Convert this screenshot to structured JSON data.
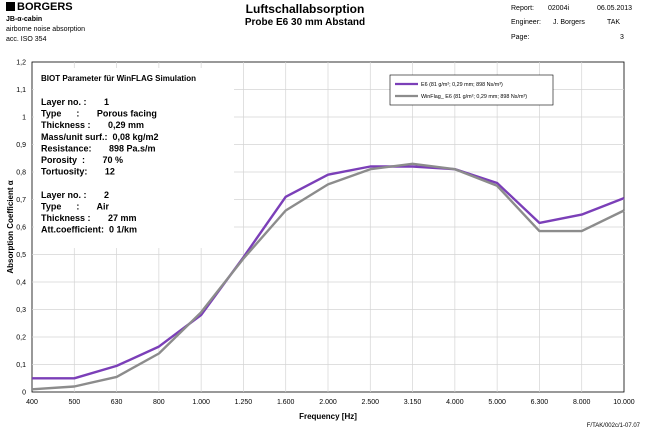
{
  "header": {
    "brand": "BORGERS",
    "subtitle_lines": [
      "JB-α-cabin",
      "airborne noise absorption",
      "acc. ISO 354"
    ],
    "title": "Luftschallabsorption",
    "subtitle": "Probe E6 30 mm Abstand",
    "report_label": "Report:",
    "report_value": "02004i",
    "date": "06.05.2013",
    "engineer_label": "Engineer:",
    "engineer_value": "J. Borgers",
    "engineer_code": "TAK",
    "page_label": "Page:",
    "page_value": "3"
  },
  "footer": {
    "code": "F/TAK/002c/1-07.07"
  },
  "colors": {
    "series1": "#7B3FB8",
    "series2": "#8C8C8C",
    "grid": "#d4d4d4"
  },
  "chart_data": {
    "type": "line",
    "xlabel": "Frequency [Hz]",
    "ylabel": "Absorption Coefficient α",
    "ylim": [
      0,
      1.2
    ],
    "yticks": [
      "0",
      "0,1",
      "0,2",
      "0,3",
      "0,4",
      "0,5",
      "0,6",
      "0,7",
      "0,8",
      "0,9",
      "1",
      "1,1",
      "1,2"
    ],
    "grid": true,
    "categories": [
      "400",
      "500",
      "630",
      "800",
      "1.000",
      "1.250",
      "1.600",
      "2.000",
      "2.500",
      "3.150",
      "4.000",
      "5.000",
      "6.300",
      "8.000",
      "10.000"
    ],
    "series": [
      {
        "name": "E6 (81 g/m²; 0,29 mm; 898 Ns/m³)",
        "values": [
          0.05,
          0.05,
          0.095,
          0.165,
          0.28,
          0.49,
          0.71,
          0.79,
          0.82,
          0.82,
          0.81,
          0.76,
          0.615,
          0.645,
          0.705
        ]
      },
      {
        "name": "WinFlag_ E6 (81 g/m²; 0,29 mm; 898 Ns/m³)",
        "values": [
          0.01,
          0.02,
          0.055,
          0.14,
          0.29,
          0.485,
          0.66,
          0.755,
          0.81,
          0.83,
          0.81,
          0.75,
          0.585,
          0.585,
          0.66
        ]
      }
    ],
    "legend_position": "top-right",
    "info_box": {
      "title": "BIOT Parameter für WinFLAG Simulation",
      "lines": [
        "Layer no. :       1",
        "Type      :       Porous facing",
        "Thickness :       0,29 mm",
        "Mass/unit surf.:  0,08 kg/m2",
        "Resistance:       898 Pa.s/m",
        "Porosity  :       70 %",
        "Tortuosity:       12",
        "",
        "Layer no. :       2",
        "Type      :       Air",
        "Thickness :       27 mm",
        "Att.coefficient:  0 1/km"
      ]
    }
  }
}
